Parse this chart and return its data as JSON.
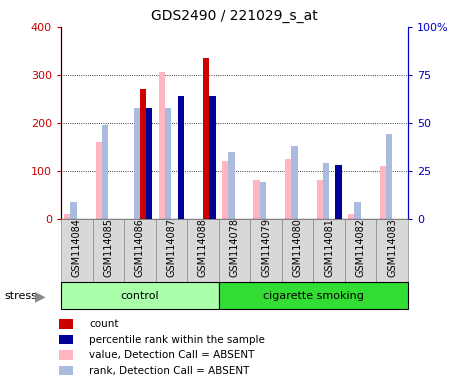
{
  "title": "GDS2490 / 221029_s_at",
  "samples": [
    "GSM114084",
    "GSM114085",
    "GSM114086",
    "GSM114087",
    "GSM114088",
    "GSM114078",
    "GSM114079",
    "GSM114080",
    "GSM114081",
    "GSM114082",
    "GSM114083"
  ],
  "groups": [
    "control",
    "control",
    "control",
    "control",
    "control",
    "cigarette smoking",
    "cigarette smoking",
    "cigarette smoking",
    "cigarette smoking",
    "cigarette smoking",
    "cigarette smoking"
  ],
  "count_values": [
    0,
    0,
    270,
    0,
    335,
    0,
    0,
    0,
    0,
    0,
    0
  ],
  "percentile_values": [
    0,
    0,
    58,
    64,
    64,
    0,
    0,
    0,
    28,
    0,
    0
  ],
  "absent_value_values": [
    10,
    160,
    0,
    305,
    0,
    120,
    80,
    125,
    80,
    10,
    110
  ],
  "absent_rank_values": [
    9,
    49,
    58,
    58,
    0,
    35,
    19,
    38,
    29,
    9,
    44
  ],
  "left_ylim": [
    0,
    400
  ],
  "right_ylim": [
    0,
    100
  ],
  "left_yticks": [
    0,
    100,
    200,
    300,
    400
  ],
  "right_yticks": [
    0,
    25,
    50,
    75,
    100
  ],
  "right_yticklabels": [
    "0",
    "25",
    "50",
    "75",
    "100%"
  ],
  "color_count": "#CC0000",
  "color_percentile": "#000099",
  "color_absent_value": "#FFB6C1",
  "color_absent_rank": "#AABBDD",
  "bar_width": 0.2,
  "group_control_color": "#AAFFAA",
  "group_smoking_color": "#33DD33",
  "group_box_color": "#D8D8D8",
  "left_axis_color": "#CC0000",
  "right_axis_color": "#0000CC",
  "n_control": 5,
  "n_smoking": 6
}
